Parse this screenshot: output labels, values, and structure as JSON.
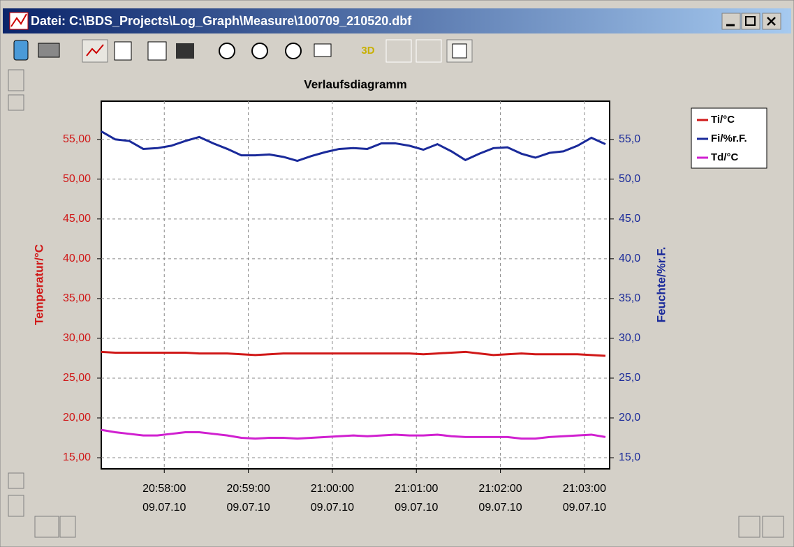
{
  "window": {
    "title": "Datei: C:\\BDS_Projects\\Log_Graph\\Measure\\100709_210520.dbf"
  },
  "toolbar": {
    "button_3d": "3D"
  },
  "chart_data": {
    "type": "line",
    "title": "Verlaufsdiagramm",
    "y_label": "Temperatur/°C",
    "y2_label": "Feuchte/%r.F.",
    "x": [
      "20:57:15",
      "20:57:25",
      "20:57:35",
      "20:57:45",
      "20:57:55",
      "20:58:05",
      "20:58:15",
      "20:58:25",
      "20:58:35",
      "20:58:45",
      "20:58:55",
      "20:59:05",
      "20:59:15",
      "20:59:25",
      "20:59:35",
      "20:59:45",
      "20:59:55",
      "21:00:05",
      "21:00:15",
      "21:00:25",
      "21:00:35",
      "21:00:45",
      "21:00:55",
      "21:01:05",
      "21:01:15",
      "21:01:25",
      "21:01:35",
      "21:01:45",
      "21:01:55",
      "21:02:05",
      "21:02:15",
      "21:02:25",
      "21:02:35",
      "21:02:45",
      "21:02:55",
      "21:03:05",
      "21:03:15"
    ],
    "xlim": [
      "20:57:15",
      "21:03:18"
    ],
    "xticks": [
      "20:58:00",
      "20:59:00",
      "21:00:00",
      "21:01:00",
      "21:02:00",
      "21:03:00"
    ],
    "xtick_dates": [
      "09.07.10",
      "09.07.10",
      "09.07.10",
      "09.07.10",
      "09.07.10",
      "09.07.10"
    ],
    "ylim": [
      13.6,
      59.8
    ],
    "yticks": [
      {
        "value": 15,
        "label": "15,00"
      },
      {
        "value": 20,
        "label": "20,00"
      },
      {
        "value": 25,
        "label": "25,00"
      },
      {
        "value": 30,
        "label": "30,00"
      },
      {
        "value": 35,
        "label": "35,00"
      },
      {
        "value": 40,
        "label": "40,00"
      },
      {
        "value": 45,
        "label": "45,00"
      },
      {
        "value": 50,
        "label": "50,00"
      },
      {
        "value": 55,
        "label": "55,00"
      }
    ],
    "y2lim": [
      13.6,
      59.8
    ],
    "y2ticks": [
      {
        "value": 15,
        "label": "15,0"
      },
      {
        "value": 20,
        "label": "20,0"
      },
      {
        "value": 25,
        "label": "25,0"
      },
      {
        "value": 30,
        "label": "30,0"
      },
      {
        "value": 35,
        "label": "35,0"
      },
      {
        "value": 40,
        "label": "40,0"
      },
      {
        "value": 45,
        "label": "45,0"
      },
      {
        "value": 50,
        "label": "50,0"
      },
      {
        "value": 55,
        "label": "55,0"
      }
    ],
    "grid": true,
    "legend": "right",
    "series": [
      {
        "name": "Ti/°C",
        "color": "#d01818",
        "values": [
          28.3,
          28.2,
          28.2,
          28.2,
          28.2,
          28.2,
          28.2,
          28.1,
          28.1,
          28.1,
          28.0,
          27.9,
          28.0,
          28.1,
          28.1,
          28.1,
          28.1,
          28.1,
          28.1,
          28.1,
          28.1,
          28.1,
          28.1,
          28.0,
          28.1,
          28.2,
          28.3,
          28.1,
          27.9,
          28.0,
          28.1,
          28.0,
          28.0,
          28.0,
          28.0,
          27.9,
          27.8
        ]
      },
      {
        "name": "Fi/%r.F.",
        "color": "#1a2a9a",
        "axis": "y2",
        "values": [
          56.0,
          55.0,
          54.8,
          53.8,
          53.9,
          54.2,
          54.8,
          55.3,
          54.5,
          53.8,
          53.0,
          53.0,
          53.1,
          52.8,
          52.3,
          52.9,
          53.4,
          53.8,
          53.9,
          53.8,
          54.5,
          54.5,
          54.2,
          53.7,
          54.4,
          53.5,
          52.4,
          53.2,
          53.9,
          54.0,
          53.2,
          52.7,
          53.3,
          53.5,
          54.2,
          55.2,
          54.4
        ]
      },
      {
        "name": "Td/°C",
        "color": "#d020d0",
        "values": [
          18.5,
          18.2,
          18.0,
          17.8,
          17.8,
          18.0,
          18.2,
          18.2,
          18.0,
          17.8,
          17.5,
          17.4,
          17.5,
          17.5,
          17.4,
          17.5,
          17.6,
          17.7,
          17.8,
          17.7,
          17.8,
          17.9,
          17.8,
          17.8,
          17.9,
          17.7,
          17.6,
          17.6,
          17.6,
          17.6,
          17.4,
          17.4,
          17.6,
          17.7,
          17.8,
          17.9,
          17.6
        ]
      }
    ]
  }
}
